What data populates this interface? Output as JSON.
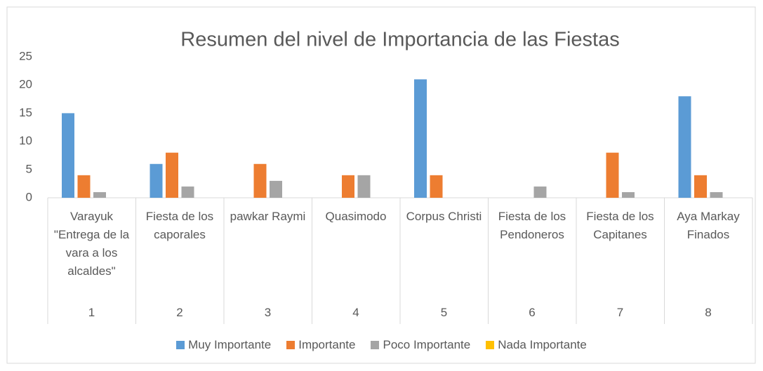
{
  "chart_data": {
    "type": "bar",
    "title": "Resumen del nivel de Importancia de las Fiestas",
    "categories": [
      "Varayuk \"Entrega de la vara a los alcaldes\"",
      "Fiesta de los caporales",
      "pawkar Raymi",
      "Quasimodo",
      "Corpus Christi",
      "Fiesta de los Pendoneros",
      "Fiesta de los Capitanes",
      "Aya Markay Finados"
    ],
    "category_groups": [
      "1",
      "2",
      "3",
      "4",
      "5",
      "6",
      "7",
      "8"
    ],
    "series": [
      {
        "name": "Muy Importante",
        "color": "#5b9bd5",
        "values": [
          15,
          6,
          0,
          0,
          21,
          0,
          0,
          18
        ]
      },
      {
        "name": "Importante",
        "color": "#ed7d31",
        "values": [
          4,
          8,
          6,
          4,
          4,
          0,
          8,
          4
        ]
      },
      {
        "name": "Poco Importante",
        "color": "#a5a5a5",
        "values": [
          1,
          2,
          3,
          4,
          0,
          2,
          1,
          1
        ]
      },
      {
        "name": "Nada Importante",
        "color": "#ffc000",
        "values": [
          0,
          0,
          0,
          0,
          0,
          0,
          0,
          0
        ]
      }
    ],
    "ylim": [
      0,
      25
    ],
    "yticks": [
      0,
      5,
      10,
      15,
      20,
      25
    ],
    "grid": false,
    "legend": "bottom"
  }
}
